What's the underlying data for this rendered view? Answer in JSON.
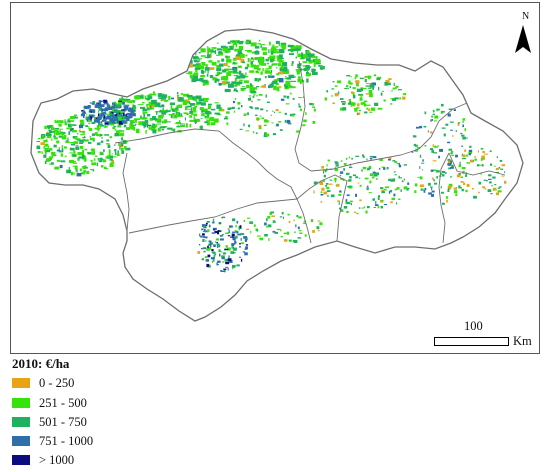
{
  "map": {
    "north_label": "N",
    "scale": {
      "distance_label": "100",
      "unit_label": "Km"
    },
    "border_color": "#6e6e6e"
  },
  "legend": {
    "title": "2010: €/ha",
    "items": [
      {
        "label": "0 - 250",
        "color": "#e8a317"
      },
      {
        "label": "251 - 500",
        "color": "#35e30a"
      },
      {
        "label": "501 - 750",
        "color": "#1fb060"
      },
      {
        "label": "751 - 1000",
        "color": "#2d6eab"
      },
      {
        "label": "> 1000",
        "color": "#0c0c80"
      }
    ]
  }
}
